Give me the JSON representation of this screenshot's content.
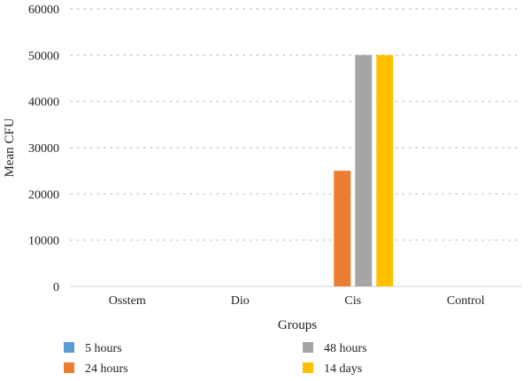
{
  "chart_data": {
    "type": "bar",
    "title": "",
    "xlabel": "Groups",
    "ylabel": "Mean CFU",
    "categories": [
      "Osstem",
      "Dio",
      "Cis",
      "Control"
    ],
    "ylim": [
      0,
      60000
    ],
    "yticks": [
      "0",
      "10000",
      "20000",
      "30000",
      "40000",
      "50000",
      "60000"
    ],
    "grid": true,
    "legend_position": "bottom",
    "series": [
      {
        "name": "5 hours",
        "color": "#5b9bd5",
        "values": [
          0,
          0,
          0,
          0
        ]
      },
      {
        "name": "24 hours",
        "color": "#ed7d31",
        "values": [
          0,
          0,
          25000,
          0
        ]
      },
      {
        "name": "48 hours",
        "color": "#a5a5a5",
        "values": [
          0,
          0,
          50000,
          0
        ]
      },
      {
        "name": "14 days",
        "color": "#ffc000",
        "values": [
          0,
          0,
          50000,
          0
        ]
      }
    ]
  }
}
